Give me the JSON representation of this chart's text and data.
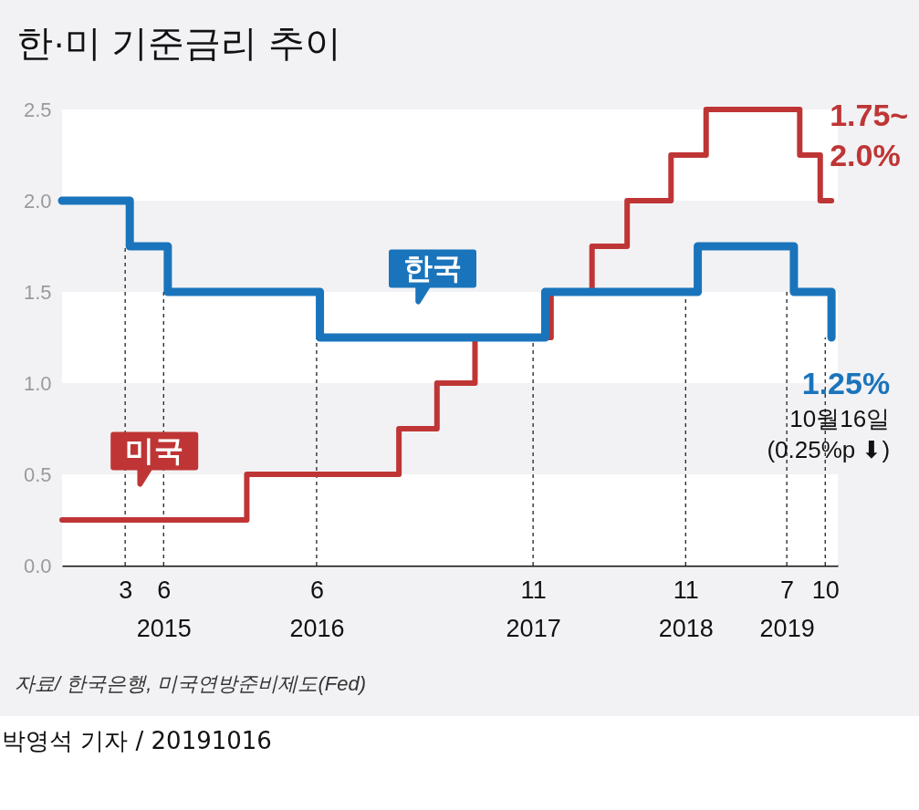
{
  "chart_data": {
    "type": "step",
    "title": "한·미 기준금리 추이",
    "x": [
      "2014-10-01",
      "2015-03-12",
      "2015-06-11",
      "2016-06-09",
      "2017-11-30",
      "2018-11-30",
      "2019-07-18",
      "2019-10-16"
    ],
    "series": [
      {
        "name": "한국",
        "color": "#1a74bb",
        "values": [
          2.0,
          1.75,
          1.5,
          1.25,
          1.5,
          1.75,
          1.5,
          1.25
        ]
      },
      {
        "name": "미국",
        "color": "#bf3535",
        "x": [
          "2014-10-01",
          "2015-12-17",
          "2016-12-15",
          "2017-03-16",
          "2017-06-15",
          "2017-12-14",
          "2018-03-22",
          "2018-06-14",
          "2018-09-27",
          "2018-12-20",
          "2019-08-01",
          "2019-09-19",
          "2019-10-16"
        ],
        "values": [
          0.25,
          0.5,
          0.75,
          1.0,
          1.25,
          1.5,
          1.75,
          2.0,
          2.25,
          2.5,
          2.25,
          2.0,
          2.0
        ]
      }
    ],
    "xlim": [
      "2014-10-01",
      "2019-10-31"
    ],
    "xticks": [
      {
        "value": "2015-03",
        "label": "3"
      },
      {
        "value": "2015-06",
        "label": "6\n2015"
      },
      {
        "value": "2016-06",
        "label": "6\n2016"
      },
      {
        "value": "2017-11",
        "label": "11\n2017"
      },
      {
        "value": "2018-11",
        "label": "11\n2018"
      },
      {
        "value": "2019-07",
        "label": "7\n2019"
      },
      {
        "value": "2019-10",
        "label": "10"
      }
    ],
    "ylim": [
      0,
      2.5
    ],
    "yticks": [
      {
        "value": 0,
        "label": "0.0"
      },
      {
        "value": 0.5,
        "label": "0.5"
      },
      {
        "value": 1,
        "label": "1.0"
      },
      {
        "value": 1.5,
        "label": "1.5"
      },
      {
        "value": 2,
        "label": "2.0"
      },
      {
        "value": 2.5,
        "label": "2.5"
      }
    ],
    "bands": [
      {
        "axis": "y",
        "from": 0,
        "to": 0.5,
        "color": "#ffffff"
      },
      {
        "axis": "y",
        "from": 1.0,
        "to": 1.5,
        "color": "#ffffff"
      },
      {
        "axis": "y",
        "from": 2.0,
        "to": 2.5,
        "color": "#ffffff"
      }
    ],
    "ref_lines": [
      {
        "axis": "x",
        "value": "2015-03",
        "line_style": "dashed"
      },
      {
        "axis": "x",
        "value": "2015-06",
        "line_style": "dashed"
      },
      {
        "axis": "x",
        "value": "2016-06",
        "line_style": "dashed"
      },
      {
        "axis": "x",
        "value": "2017-11",
        "line_style": "dashed"
      },
      {
        "axis": "x",
        "value": "2018-11",
        "line_style": "dashed"
      },
      {
        "axis": "x",
        "value": "2019-07",
        "line_style": "dashed"
      },
      {
        "axis": "x",
        "value": "2019-10",
        "line_style": "dashed"
      }
    ],
    "annotations": [
      {
        "text": "1.75~\n2.0%",
        "x": "2019-10-16",
        "y": 2.0
      },
      {
        "text": "1.25%\n10월16일\n(0.25%p ⬇)",
        "x": "2019-10-16",
        "y": 1.25
      },
      "자료/ 한국은행, 미국연방준비제도(Fed)",
      "박영석 기자 /  20191016"
    ]
  }
}
